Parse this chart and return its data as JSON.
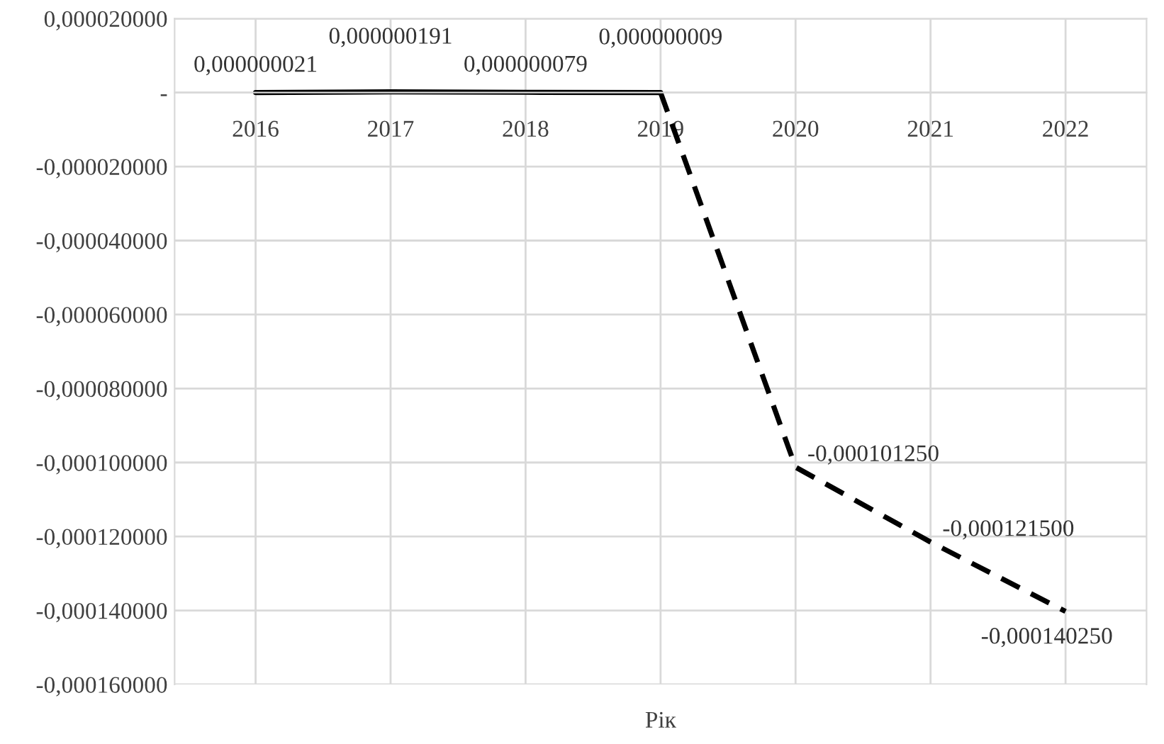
{
  "chart_data": {
    "type": "line",
    "xlabel": "Рік",
    "categories": [
      "2016",
      "2017",
      "2018",
      "2019",
      "2020",
      "2021",
      "2022"
    ],
    "series": [
      {
        "color": "#000000",
        "line_style": "solid",
        "values": [
          2.1e-08,
          1.91e-07,
          7.9e-08,
          9e-09,
          null,
          null,
          null
        ],
        "value_labels": [
          "0,000000021",
          "0,000000191",
          "0,000000079",
          "0,000000009",
          null,
          null,
          null
        ]
      },
      {
        "color": "#000000",
        "line_style": "dashed",
        "values": [
          null,
          null,
          null,
          9e-09,
          -0.00010125,
          -0.0001215,
          -0.00014025
        ],
        "value_labels": [
          null,
          null,
          null,
          null,
          "-0,000101250",
          "-0,000121500",
          "-0,000140250"
        ]
      }
    ],
    "ylim": [
      -0.00016,
      2e-05
    ],
    "yticks": [
      {
        "value": 2e-05,
        "label": "0,000020000"
      },
      {
        "value": 0,
        "label": "-"
      },
      {
        "value": -2e-05,
        "label": "-0,000020000"
      },
      {
        "value": -4e-05,
        "label": "-0,000040000"
      },
      {
        "value": -6e-05,
        "label": "-0,000060000"
      },
      {
        "value": -8e-05,
        "label": "-0,000080000"
      },
      {
        "value": -0.0001,
        "label": "-0,000100000"
      },
      {
        "value": -0.00012,
        "label": "-0,000120000"
      },
      {
        "value": -0.00014,
        "label": "-0,000140000"
      },
      {
        "value": -0.00016,
        "label": "-0,000160000"
      }
    ],
    "grid": true,
    "marker": "none"
  }
}
